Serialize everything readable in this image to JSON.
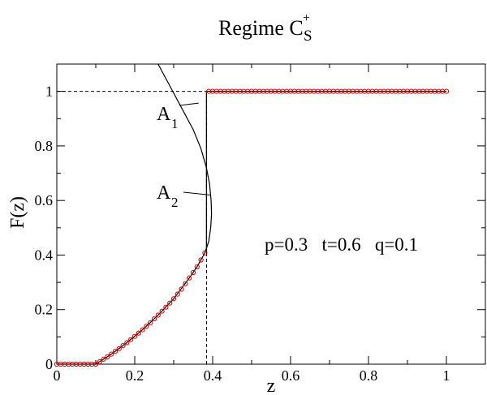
{
  "chart_data": {
    "type": "line",
    "title": {
      "text": "Regime C",
      "sup": "+",
      "sub": "S"
    },
    "xlabel": "z",
    "ylabel": "F(z)",
    "xlim": [
      0,
      1.1
    ],
    "ylim": [
      0,
      1.1
    ],
    "xticks": [
      0,
      0.2,
      0.4,
      0.6,
      0.8,
      1
    ],
    "xtick_labels": [
      "0",
      "0.2",
      "0.4",
      "0.6",
      "0.8",
      "1"
    ],
    "yticks": [
      0,
      0.2,
      0.4,
      0.6,
      0.8,
      1
    ],
    "ytick_labels": [
      "0",
      "0.2",
      "0.4",
      "0.6",
      "0.8",
      "1"
    ],
    "annotation": "p=0.3   t=0.6   q=0.1",
    "reference_lines": {
      "horizontal_y": 1,
      "vertical_x": 0.3845
    },
    "series": [
      {
        "style": "solid-line",
        "color": "#000000",
        "x": [
          0.1,
          0.14,
          0.18,
          0.22,
          0.26,
          0.3,
          0.34,
          0.36,
          0.38,
          0.39,
          0.395,
          0.397,
          0.396,
          0.392,
          0.384,
          0.37,
          0.35,
          0.32,
          0.29,
          0.26
        ],
        "y": [
          0.0,
          0.037,
          0.079,
          0.126,
          0.18,
          0.24,
          0.316,
          0.357,
          0.408,
          0.45,
          0.5,
          0.55,
          0.6,
          0.66,
          0.72,
          0.79,
          0.86,
          0.94,
          1.02,
          1.1
        ]
      },
      {
        "style": "markers",
        "color": "#cc0000",
        "x": [
          0.0,
          0.01,
          0.02,
          0.03,
          0.04,
          0.05,
          0.06,
          0.07,
          0.08,
          0.09,
          0.1,
          0.11,
          0.12,
          0.13,
          0.14,
          0.15,
          0.16,
          0.17,
          0.18,
          0.19,
          0.2,
          0.21,
          0.22,
          0.23,
          0.24,
          0.25,
          0.26,
          0.27,
          0.28,
          0.29,
          0.3,
          0.31,
          0.32,
          0.33,
          0.34,
          0.35,
          0.36,
          0.37,
          0.38,
          0.39,
          0.4,
          0.41,
          0.42,
          0.43,
          0.44,
          0.45,
          0.46,
          0.47,
          0.48,
          0.49,
          0.5,
          0.51,
          0.52,
          0.53,
          0.54,
          0.55,
          0.56,
          0.57,
          0.58,
          0.59,
          0.6,
          0.61,
          0.62,
          0.63,
          0.64,
          0.65,
          0.66,
          0.67,
          0.68,
          0.69,
          0.7,
          0.71,
          0.72,
          0.73,
          0.74,
          0.75,
          0.76,
          0.77,
          0.78,
          0.79,
          0.8,
          0.81,
          0.82,
          0.83,
          0.84,
          0.85,
          0.86,
          0.87,
          0.88,
          0.89,
          0.9,
          0.91,
          0.92,
          0.93,
          0.94,
          0.95,
          0.96,
          0.97,
          0.98,
          0.99,
          1.0
        ],
        "y": [
          0.0,
          0.0,
          0.0,
          0.0,
          0.0,
          0.0,
          0.0,
          0.0,
          0.0,
          0.0,
          0.0,
          0.009,
          0.018,
          0.027,
          0.037,
          0.047,
          0.057,
          0.068,
          0.079,
          0.09,
          0.102,
          0.114,
          0.126,
          0.139,
          0.152,
          0.166,
          0.18,
          0.194,
          0.209,
          0.224,
          0.24,
          0.257,
          0.275,
          0.295,
          0.316,
          0.336,
          0.357,
          0.382,
          0.408,
          1.0,
          1.0,
          1.0,
          1.0,
          1.0,
          1.0,
          1.0,
          1.0,
          1.0,
          1.0,
          1.0,
          1.0,
          1.0,
          1.0,
          1.0,
          1.0,
          1.0,
          1.0,
          1.0,
          1.0,
          1.0,
          1.0,
          1.0,
          1.0,
          1.0,
          1.0,
          1.0,
          1.0,
          1.0,
          1.0,
          1.0,
          1.0,
          1.0,
          1.0,
          1.0,
          1.0,
          1.0,
          1.0,
          1.0,
          1.0,
          1.0,
          1.0,
          1.0,
          1.0,
          1.0,
          1.0,
          1.0,
          1.0,
          1.0,
          1.0,
          1.0,
          1.0,
          1.0,
          1.0,
          1.0,
          1.0,
          1.0,
          1.0,
          1.0,
          1.0,
          1.0,
          1.0
        ]
      }
    ],
    "callouts": [
      {
        "label": "A",
        "sub": "1",
        "tip_x": 0.364,
        "tip_y": 0.957
      },
      {
        "label": "A",
        "sub": "2",
        "tip_x": 0.395,
        "tip_y": 0.62
      }
    ],
    "legend": "none",
    "grid": false
  }
}
